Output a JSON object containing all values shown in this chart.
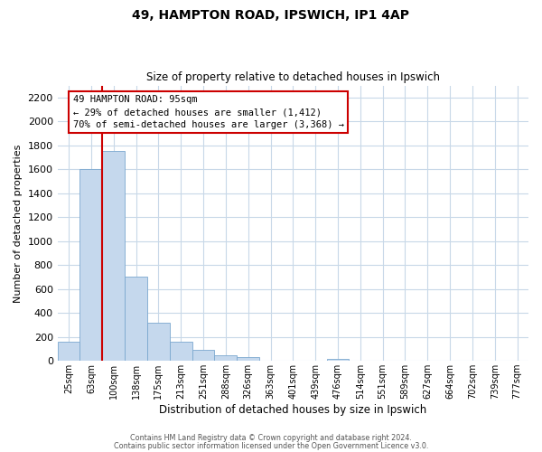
{
  "title": "49, HAMPTON ROAD, IPSWICH, IP1 4AP",
  "subtitle": "Size of property relative to detached houses in Ipswich",
  "xlabel": "Distribution of detached houses by size in Ipswich",
  "ylabel": "Number of detached properties",
  "bar_labels": [
    "25sqm",
    "63sqm",
    "100sqm",
    "138sqm",
    "175sqm",
    "213sqm",
    "251sqm",
    "288sqm",
    "326sqm",
    "363sqm",
    "401sqm",
    "439sqm",
    "476sqm",
    "514sqm",
    "551sqm",
    "589sqm",
    "627sqm",
    "664sqm",
    "702sqm",
    "739sqm",
    "777sqm"
  ],
  "bar_values": [
    160,
    1600,
    1750,
    700,
    320,
    160,
    90,
    50,
    30,
    0,
    0,
    0,
    20,
    0,
    0,
    0,
    0,
    0,
    0,
    0,
    0
  ],
  "bar_color": "#c5d8ed",
  "bar_edge_color": "#7ba8cf",
  "vline_color": "#cc0000",
  "vline_pos": 2,
  "annotation_text_line1": "49 HAMPTON ROAD: 95sqm",
  "annotation_text_line2": "← 29% of detached houses are smaller (1,412)",
  "annotation_text_line3": "70% of semi-detached houses are larger (3,368) →",
  "box_edge_color": "#cc0000",
  "ylim": [
    0,
    2300
  ],
  "yticks": [
    0,
    200,
    400,
    600,
    800,
    1000,
    1200,
    1400,
    1600,
    1800,
    2000,
    2200
  ],
  "footer_line1": "Contains HM Land Registry data © Crown copyright and database right 2024.",
  "footer_line2": "Contains public sector information licensed under the Open Government Licence v3.0.",
  "background_color": "#ffffff",
  "grid_color": "#c8d8e8"
}
